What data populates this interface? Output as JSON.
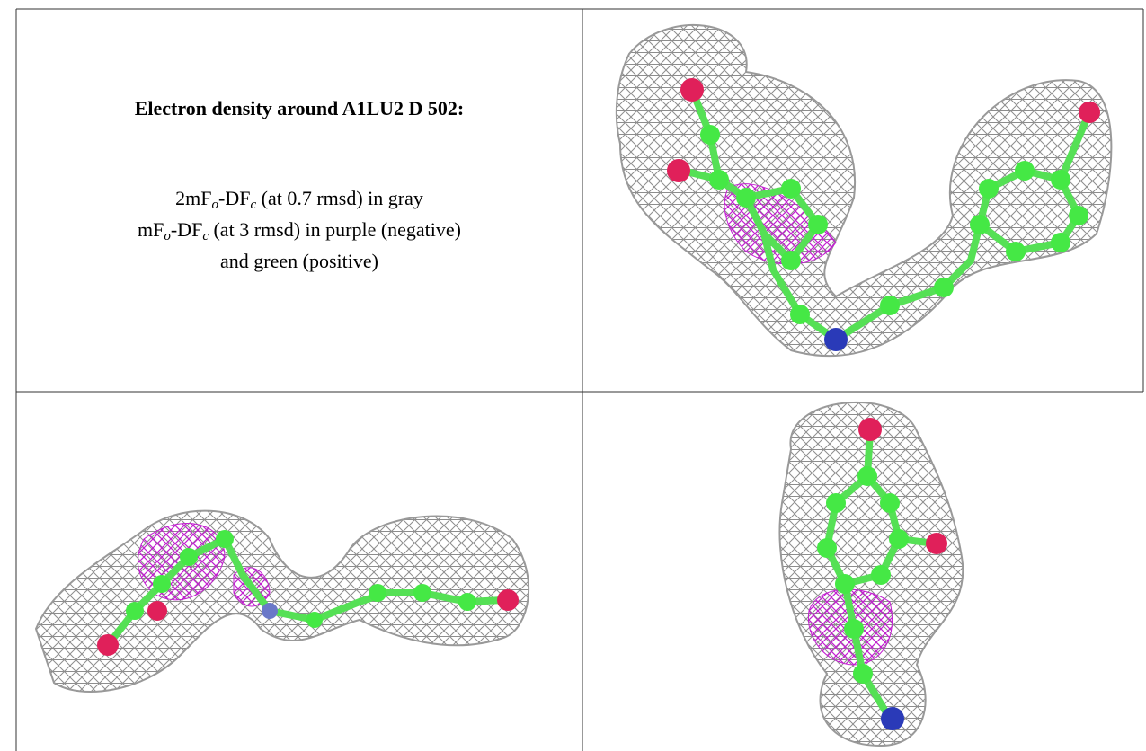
{
  "caption": {
    "title": "Electron density around A1LU2 D 502:",
    "lines": [
      [
        "2mF",
        "o",
        "-DF",
        "c",
        " (at 0.7 rmsd) in gray"
      ],
      [
        "mF",
        "o",
        "-DF",
        "c",
        " (at 3 rmsd) in purple (negative)"
      ],
      [
        "and green (positive)"
      ]
    ]
  }
}
